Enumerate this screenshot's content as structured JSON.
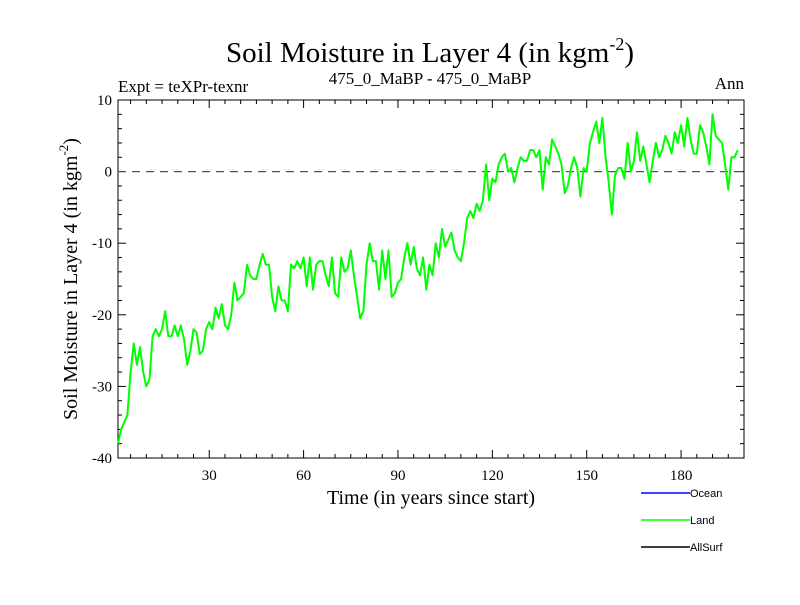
{
  "chart_data": {
    "type": "line",
    "title": "Soil Moisture in Layer 4 (in kgm",
    "title_superscript": "-2",
    "title_close": ")",
    "subtitle_left": "Expt = teXPr-texnr",
    "subtitle_center": "475_0_MaBP - 475_0_MaBP",
    "subtitle_right": "Ann",
    "xlabel": "Time (in years since start)",
    "ylabel": "Soil Moisture in Layer 4 (in kgm",
    "ylabel_superscript": "-2",
    "ylabel_close": ")",
    "xlim": [
      1,
      200
    ],
    "ylim": [
      -40,
      10
    ],
    "x_ticks": [
      30,
      60,
      90,
      120,
      150,
      180
    ],
    "y_ticks": [
      -40,
      -30,
      -20,
      -10,
      0,
      10
    ],
    "reference_line": 0,
    "legend_position": "bottom-right",
    "series": [
      {
        "name": "Ocean",
        "color": "#0000ff",
        "values": []
      },
      {
        "name": "Land",
        "color": "#00ff00",
        "values": [
          -38.0,
          -36.0,
          -35.0,
          -34.0,
          -28.0,
          -24.0,
          -27.0,
          -24.5,
          -28.0,
          -30.0,
          -29.0,
          -23.0,
          -22.0,
          -23.0,
          -22.0,
          -19.5,
          -23.0,
          -23.0,
          -21.5,
          -23.0,
          -21.5,
          -23.5,
          -27.0,
          -25.0,
          -22.0,
          -22.5,
          -25.5,
          -25.0,
          -22.0,
          -21.0,
          -22.0,
          -19.0,
          -20.5,
          -18.5,
          -21.5,
          -22.0,
          -20.0,
          -15.5,
          -18.0,
          -17.5,
          -17.0,
          -13.0,
          -14.5,
          -15.0,
          -15.0,
          -13.0,
          -11.5,
          -13.0,
          -13.0,
          -17.5,
          -19.5,
          -16.0,
          -18.0,
          -18.0,
          -19.5,
          -13.0,
          -13.5,
          -12.5,
          -13.5,
          -12.0,
          -16.0,
          -12.0,
          -16.5,
          -13.0,
          -12.5,
          -12.5,
          -14.5,
          -16.0,
          -12.0,
          -17.0,
          -17.5,
          -12.0,
          -14.0,
          -13.5,
          -11.0,
          -14.5,
          -17.5,
          -20.5,
          -19.5,
          -13.0,
          -10.0,
          -12.5,
          -12.5,
          -16.5,
          -11.0,
          -15.0,
          -11.0,
          -17.5,
          -17.0,
          -15.5,
          -15.0,
          -12.0,
          -10.0,
          -13.0,
          -10.5,
          -13.5,
          -14.5,
          -12.0,
          -16.5,
          -13.0,
          -14.5,
          -10.0,
          -12.0,
          -8.0,
          -10.5,
          -9.5,
          -8.5,
          -11.0,
          -12.0,
          -12.5,
          -10.0,
          -6.5,
          -5.5,
          -6.5,
          -4.5,
          -5.5,
          -4.0,
          1.0,
          -4.0,
          -1.0,
          -1.5,
          1.0,
          2.0,
          2.5,
          0.0,
          0.5,
          -1.5,
          0.5,
          2.0,
          1.5,
          1.5,
          3.0,
          3.0,
          2.0,
          3.0,
          -2.5,
          2.0,
          1.0,
          4.5,
          3.5,
          2.5,
          1.0,
          -3.0,
          -2.0,
          0.5,
          2.0,
          0.5,
          -3.5,
          0.5,
          0.0,
          4.0,
          5.5,
          7.0,
          4.0,
          7.5,
          2.0,
          -1.5,
          -6.0,
          -0.5,
          0.5,
          0.5,
          -1.0,
          4.0,
          0.0,
          1.5,
          5.5,
          1.5,
          3.5,
          1.0,
          -1.5,
          1.5,
          4.0,
          2.0,
          3.0,
          5.0,
          4.0,
          2.5,
          5.5,
          4.0,
          6.5,
          3.5,
          7.5,
          4.5,
          2.5,
          2.5,
          6.5,
          5.5,
          3.5,
          1.0,
          8.0,
          5.0,
          4.5,
          4.0,
          1.0,
          -2.5,
          2.0,
          2.0,
          3.0
        ]
      },
      {
        "name": "AllSurf",
        "color": "#000000",
        "values": []
      }
    ]
  }
}
